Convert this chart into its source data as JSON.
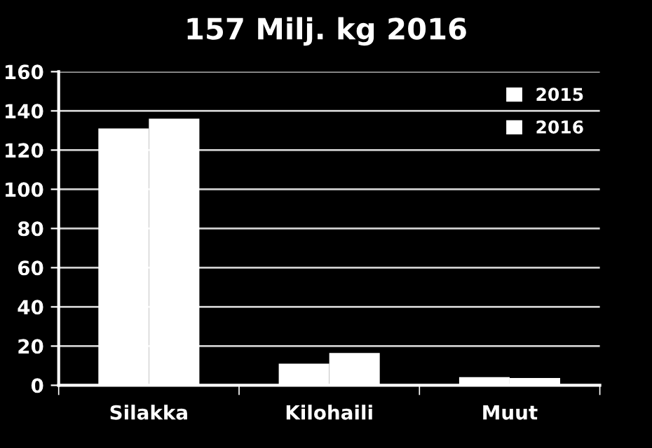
{
  "chart_data": {
    "type": "bar",
    "title": "157 Milj. kg 2016",
    "categories": [
      "Silakka",
      "Kilohaili",
      "Muut"
    ],
    "series": [
      {
        "name": "2015",
        "color": "#ffffff",
        "values": [
          131,
          11,
          4.2
        ]
      },
      {
        "name": "2016",
        "color": "#ffffff",
        "values": [
          136,
          16.5,
          3.7
        ]
      }
    ],
    "ylim": [
      0,
      160
    ],
    "yticks": [
      0,
      20,
      40,
      60,
      80,
      100,
      120,
      140,
      160
    ],
    "grid": "y",
    "legend": "top right"
  }
}
